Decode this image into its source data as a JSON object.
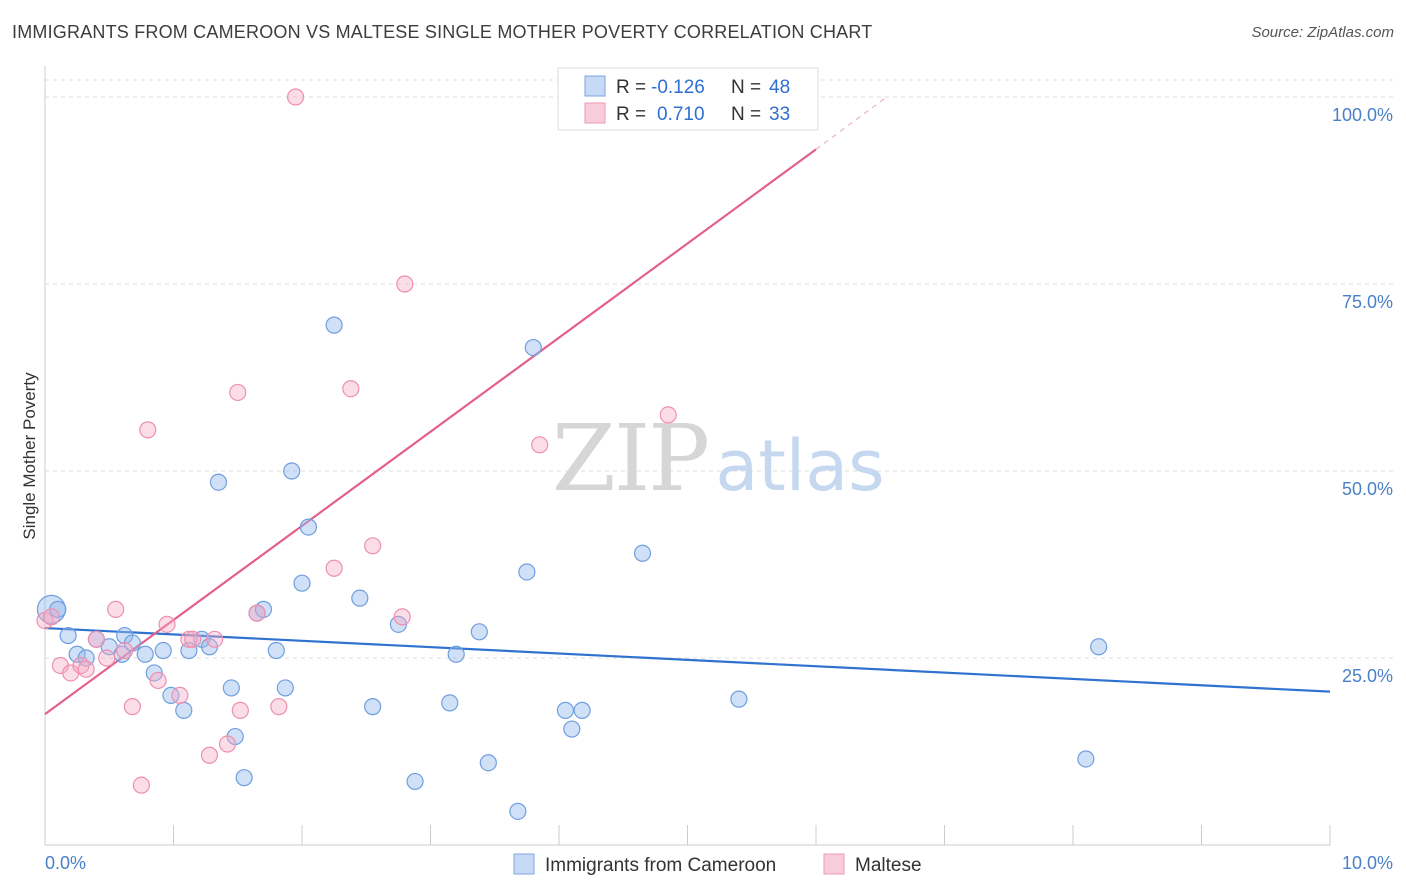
{
  "header": {
    "title": "IMMIGRANTS FROM CAMEROON VS MALTESE SINGLE MOTHER POVERTY CORRELATION CHART",
    "source": "Source: ZipAtlas.com"
  },
  "watermark": {
    "zip": "ZIP",
    "atlas": "atlas"
  },
  "legend_top": {
    "rows": [
      {
        "r_label": "R =",
        "r_value": "-0.126",
        "n_label": "N =",
        "n_value": "48"
      },
      {
        "r_label": "R =",
        "r_value": "0.710",
        "n_label": "N =",
        "n_value": "33"
      }
    ]
  },
  "chart_data": {
    "type": "scatter",
    "title": "IMMIGRANTS FROM CAMEROON VS MALTESE SINGLE MOTHER POVERTY CORRELATION CHART",
    "xlabel": "",
    "ylabel": "Single Mother Poverty",
    "xlim": [
      0,
      10
    ],
    "ylim": [
      0,
      100
    ],
    "x_tick_labels": [
      "0.0%",
      "10.0%"
    ],
    "y_tick_labels": [
      "25.0%",
      "50.0%",
      "75.0%",
      "100.0%"
    ],
    "y_tick_values": [
      25,
      50,
      75,
      100
    ],
    "grid": true,
    "legend_position": "bottom",
    "colors": {
      "blue": "#6f9fe0",
      "blue_line": "#2f72d0",
      "pink": "#ee8fb0",
      "pink_line": "#e4608a"
    },
    "series": [
      {
        "name": "Immigrants from Cameroon",
        "color": "blue",
        "trend": {
          "x0": 0,
          "y0": 29.0,
          "x1": 10,
          "y1": 20.5
        },
        "points": [
          [
            0.05,
            31.5
          ],
          [
            0.1,
            31.5
          ],
          [
            0.18,
            28.0
          ],
          [
            0.25,
            25.5
          ],
          [
            0.32,
            25.0
          ],
          [
            0.4,
            27.5
          ],
          [
            0.5,
            26.5
          ],
          [
            0.6,
            25.5
          ],
          [
            0.62,
            28.0
          ],
          [
            0.68,
            27.0
          ],
          [
            0.78,
            25.5
          ],
          [
            0.85,
            23.0
          ],
          [
            0.92,
            26.0
          ],
          [
            0.98,
            20.0
          ],
          [
            1.08,
            18.0
          ],
          [
            1.12,
            26.0
          ],
          [
            1.22,
            27.5
          ],
          [
            1.28,
            26.5
          ],
          [
            1.35,
            48.5
          ],
          [
            1.45,
            21.0
          ],
          [
            1.48,
            14.5
          ],
          [
            1.55,
            9.0
          ],
          [
            1.65,
            31.0
          ],
          [
            1.7,
            31.5
          ],
          [
            1.8,
            26.0
          ],
          [
            1.87,
            21.0
          ],
          [
            1.92,
            50.0
          ],
          [
            2.0,
            35.0
          ],
          [
            2.05,
            42.5
          ],
          [
            2.25,
            69.5
          ],
          [
            2.45,
            33.0
          ],
          [
            2.55,
            18.5
          ],
          [
            2.75,
            29.5
          ],
          [
            2.88,
            8.5
          ],
          [
            3.15,
            19.0
          ],
          [
            3.2,
            25.5
          ],
          [
            3.38,
            28.5
          ],
          [
            3.45,
            11.0
          ],
          [
            3.68,
            4.5
          ],
          [
            3.75,
            36.5
          ],
          [
            3.8,
            66.5
          ],
          [
            4.05,
            18.0
          ],
          [
            4.1,
            15.5
          ],
          [
            4.18,
            18.0
          ],
          [
            4.65,
            39.0
          ],
          [
            5.4,
            19.5
          ],
          [
            8.1,
            11.5
          ],
          [
            8.2,
            26.5
          ]
        ]
      },
      {
        "name": "Maltese",
        "color": "pink",
        "trend": {
          "x0": 0,
          "y0": 17.5,
          "x1": 6.0,
          "y1": 93.0,
          "dash_to_x": 6.55,
          "dash_to_y": 100
        },
        "points": [
          [
            0.0,
            30.0
          ],
          [
            0.12,
            24.0
          ],
          [
            0.2,
            23.0
          ],
          [
            0.28,
            24.0
          ],
          [
            0.32,
            23.5
          ],
          [
            0.4,
            27.5
          ],
          [
            0.48,
            25.0
          ],
          [
            0.55,
            31.5
          ],
          [
            0.62,
            26.0
          ],
          [
            0.68,
            18.5
          ],
          [
            0.75,
            8.0
          ],
          [
            0.8,
            55.5
          ],
          [
            0.88,
            22.0
          ],
          [
            0.95,
            29.5
          ],
          [
            1.05,
            20.0
          ],
          [
            1.12,
            27.5
          ],
          [
            1.15,
            27.5
          ],
          [
            1.28,
            12.0
          ],
          [
            1.32,
            27.5
          ],
          [
            1.42,
            13.5
          ],
          [
            1.5,
            60.5
          ],
          [
            1.52,
            18.0
          ],
          [
            1.65,
            31.0
          ],
          [
            1.82,
            18.5
          ],
          [
            1.95,
            100.0
          ],
          [
            2.25,
            37.0
          ],
          [
            2.38,
            61.0
          ],
          [
            2.55,
            40.0
          ],
          [
            2.78,
            30.5
          ],
          [
            2.8,
            75.0
          ],
          [
            3.85,
            53.5
          ],
          [
            4.85,
            57.5
          ],
          [
            0.05,
            30.5
          ]
        ]
      }
    ]
  },
  "bottom_legend": {
    "items": [
      {
        "label": "Immigrants from Cameroon"
      },
      {
        "label": "Maltese"
      }
    ]
  }
}
